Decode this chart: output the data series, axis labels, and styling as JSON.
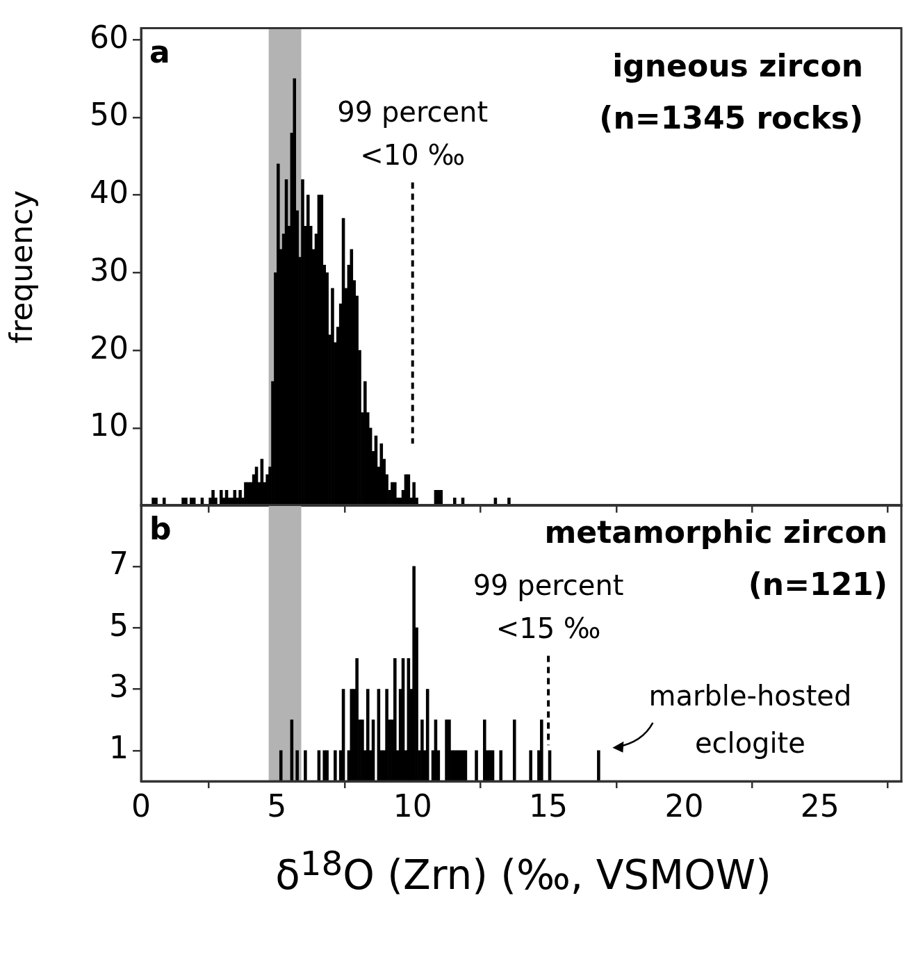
{
  "chart_data": [
    {
      "type": "histogram",
      "ylabel": "frequency",
      "bins": [
        0,
        0.1,
        0.2,
        0.3,
        0.4,
        0.5,
        0.6,
        0.7,
        0.8,
        0.9,
        1,
        1.1,
        1.2,
        1.3,
        1.4,
        1.5,
        1.6,
        1.7,
        1.8,
        1.9,
        2,
        2.1,
        2.2,
        2.3,
        2.4,
        2.5,
        2.6,
        2.7,
        2.8,
        2.9,
        3,
        3.1,
        3.2,
        3.3,
        3.4,
        3.5,
        3.6,
        3.7,
        3.8,
        3.9,
        4,
        4.1,
        4.2,
        4.3,
        4.4,
        4.5,
        4.6,
        4.7,
        4.8,
        4.9,
        5,
        5.1,
        5.2,
        5.3,
        5.4,
        5.5,
        5.6,
        5.7,
        5.8,
        5.9,
        6,
        6.1,
        6.2,
        6.3,
        6.4,
        6.5,
        6.6,
        6.7,
        6.8,
        6.9,
        7,
        7.1,
        7.2,
        7.3,
        7.4,
        7.5,
        7.6,
        7.7,
        7.8,
        7.9,
        8,
        8.1,
        8.2,
        8.3,
        8.4,
        8.5,
        8.6,
        8.7,
        8.8,
        8.9,
        9,
        9.1,
        9.2,
        9.3,
        9.4,
        9.5,
        9.6,
        9.7,
        9.8,
        9.9,
        10,
        10.1,
        10.2,
        10.3,
        10.4,
        10.5,
        10.6,
        10.7,
        10.8,
        10.9,
        11,
        11.1,
        11.2,
        11.3,
        11.4,
        11.5,
        11.6,
        11.7,
        11.8,
        11.9,
        12,
        12.1,
        12.2,
        12.3,
        12.4,
        12.5,
        12.6,
        12.7,
        12.8,
        12.9,
        13,
        13.1,
        13.2,
        13.3,
        13.4,
        13.5,
        13.6,
        13.7,
        13.8,
        13.9,
        14
      ],
      "values": [
        null,
        0,
        0,
        0,
        1,
        1,
        0,
        0,
        1,
        0,
        0,
        0,
        0,
        0,
        0,
        1,
        1,
        0,
        1,
        1,
        0,
        0,
        1,
        0,
        0,
        1,
        2,
        1,
        0,
        2,
        1,
        2,
        1,
        1,
        2,
        1,
        2,
        1,
        3,
        3,
        3,
        4,
        5,
        3,
        6,
        3,
        4,
        5,
        16,
        30,
        44,
        33,
        35,
        42,
        36,
        48,
        55,
        38,
        32,
        42,
        36,
        40,
        36,
        33,
        35,
        40,
        40,
        31,
        30,
        22,
        28,
        21,
        23,
        26,
        37,
        28,
        31,
        33,
        29,
        27,
        20,
        12,
        16,
        12,
        10,
        7,
        9,
        5,
        8,
        6,
        4,
        2,
        3,
        3,
        1,
        1,
        2,
        4,
        4,
        1,
        3,
        1,
        0,
        0,
        0,
        0,
        0,
        0,
        2,
        2,
        2,
        0,
        0,
        0,
        0,
        1,
        0,
        0,
        1,
        0,
        0,
        0,
        0,
        0,
        0,
        0,
        0,
        0,
        0,
        0,
        1,
        0,
        0,
        0,
        0,
        1,
        0,
        0,
        0,
        0
      ],
      "color": "#000000",
      "xlim": [
        0,
        28
      ],
      "xticks": [
        0,
        5,
        10,
        15,
        20,
        25
      ],
      "ylim": [
        0,
        61.5
      ],
      "yticks": [
        10,
        20,
        30,
        40,
        50,
        60
      ],
      "tick_labels": "y",
      "grid": false,
      "bands": [
        {
          "axis": "x",
          "from": 4.7,
          "to": 5.9,
          "color": "#b3b3b3"
        }
      ],
      "ref_lines": [
        {
          "axis": "x",
          "value": 10,
          "label": "99 percent <10 ‰",
          "line_style": "dashed"
        }
      ],
      "annotations": [
        "a",
        "igneous zircon",
        "(n=1345 rocks)"
      ]
    },
    {
      "type": "histogram",
      "xlabel": "δ$^{18}$O (Zrn) (‰, VSMOW)",
      "bins": [
        5,
        5.1,
        5.2,
        5.3,
        5.4,
        5.5,
        5.6,
        5.7,
        5.8,
        5.9,
        6,
        6.1,
        6.2,
        6.3,
        6.4,
        6.5,
        6.6,
        6.7,
        6.8,
        6.9,
        7,
        7.1,
        7.2,
        7.3,
        7.4,
        7.5,
        7.6,
        7.7,
        7.8,
        7.9,
        8,
        8.1,
        8.2,
        8.3,
        8.4,
        8.5,
        8.6,
        8.7,
        8.8,
        8.9,
        9,
        9.1,
        9.2,
        9.3,
        9.4,
        9.5,
        9.6,
        9.7,
        9.8,
        9.9,
        10,
        10.1,
        10.2,
        10.3,
        10.4,
        10.5,
        10.6,
        10.7,
        10.8,
        10.9,
        11,
        11.1,
        11.2,
        11.3,
        11.4,
        11.5,
        11.6,
        11.7,
        11.8,
        11.9,
        12,
        12.1,
        12.2,
        12.3,
        12.4,
        12.5,
        12.6,
        12.7,
        12.8,
        12.9,
        13,
        13.1,
        13.2,
        13.3,
        13.4,
        13.5,
        13.6,
        13.7,
        13.8,
        13.9,
        14,
        14.1,
        14.2,
        14.3,
        14.4,
        14.5,
        14.6,
        14.7,
        14.8,
        14.9,
        15,
        15.1,
        15.2,
        15.3,
        15.4,
        15.5,
        15.6,
        15.7,
        15.8,
        15.9,
        16,
        16.1,
        16.2,
        16.3,
        16.4,
        16.5,
        16.6,
        16.7,
        16.8,
        16.9,
        17
      ],
      "values": [
        0,
        1,
        0,
        0,
        0,
        2,
        0,
        1,
        0,
        0,
        1,
        0,
        0,
        0,
        0,
        1,
        0,
        1,
        1,
        0,
        0,
        1,
        0,
        1,
        3,
        0,
        1,
        3,
        3,
        4,
        2,
        2,
        1,
        3,
        1,
        2,
        0,
        3,
        1,
        1,
        3,
        2,
        2,
        4,
        1,
        3,
        4,
        1,
        4,
        3,
        7,
        5,
        1,
        2,
        1,
        3,
        0,
        1,
        2,
        1,
        0,
        0,
        2,
        2,
        1,
        1,
        1,
        1,
        1,
        1,
        0,
        0,
        0,
        1,
        0,
        0,
        2,
        1,
        1,
        1,
        0,
        0,
        1,
        0,
        0,
        0,
        0,
        2,
        0,
        0,
        0,
        0,
        0,
        1,
        0,
        0,
        1,
        2,
        0,
        0,
        1,
        0,
        0,
        0,
        0,
        0,
        0,
        0,
        0,
        0,
        0,
        0,
        0,
        0,
        0,
        0,
        0,
        0,
        1,
        0
      ],
      "color": "#000000",
      "xlim": [
        0,
        28
      ],
      "xticks": [
        0,
        5,
        10,
        15,
        20,
        25
      ],
      "ylim": [
        0,
        9
      ],
      "yticks": [
        1,
        3,
        5,
        7
      ],
      "grid": false,
      "bands": [
        {
          "axis": "x",
          "from": 4.7,
          "to": 5.9,
          "color": "#b3b3b3"
        }
      ],
      "ref_lines": [
        {
          "axis": "x",
          "value": 15,
          "label": "99 percent <15 ‰",
          "line_style": "dashed"
        }
      ],
      "annotations": [
        "b",
        "metamorphic zircon",
        "(n=121)",
        {
          "text": "marble-hosted eclogite",
          "x": 16.8,
          "y": 1
        }
      ]
    }
  ]
}
